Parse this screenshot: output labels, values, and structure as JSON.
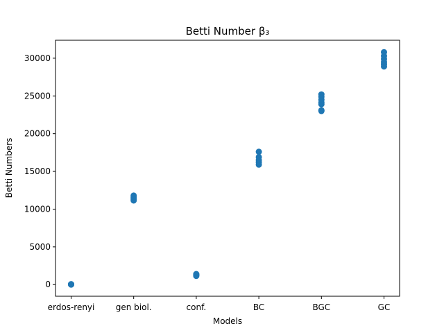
{
  "chart_data": {
    "type": "scatter",
    "title": "Betti Number β₃",
    "xlabel": "Models",
    "ylabel": "Betti Numbers",
    "categories": [
      "erdos-renyi",
      "gen biol.",
      "conf.",
      "BC",
      "BGC",
      "GC"
    ],
    "ylim": [
      -1540,
      32380
    ],
    "yticks": [
      0,
      5000,
      10000,
      15000,
      20000,
      25000,
      30000
    ],
    "ytick_labels": [
      "0",
      "5000",
      "10000",
      "15000",
      "20000",
      "25000",
      "30000"
    ],
    "grid": false,
    "marker_color": "#1f77b4",
    "points": [
      {
        "x": "erdos-renyi",
        "y": 0
      },
      {
        "x": "erdos-renyi",
        "y": 20
      },
      {
        "x": "erdos-renyi",
        "y": 40
      },
      {
        "x": "erdos-renyi",
        "y": 60
      },
      {
        "x": "gen biol.",
        "y": 11150
      },
      {
        "x": "gen biol.",
        "y": 11300
      },
      {
        "x": "gen biol.",
        "y": 11450
      },
      {
        "x": "gen biol.",
        "y": 11600
      },
      {
        "x": "gen biol.",
        "y": 11800
      },
      {
        "x": "conf.",
        "y": 1150
      },
      {
        "x": "conf.",
        "y": 1250
      },
      {
        "x": "conf.",
        "y": 1330
      },
      {
        "x": "conf.",
        "y": 1400
      },
      {
        "x": "BC",
        "y": 15900
      },
      {
        "x": "BC",
        "y": 16200
      },
      {
        "x": "BC",
        "y": 16500
      },
      {
        "x": "BC",
        "y": 16900
      },
      {
        "x": "BC",
        "y": 17600
      },
      {
        "x": "BGC",
        "y": 23000
      },
      {
        "x": "BGC",
        "y": 23100
      },
      {
        "x": "BGC",
        "y": 23900
      },
      {
        "x": "BGC",
        "y": 24100
      },
      {
        "x": "BGC",
        "y": 24500
      },
      {
        "x": "BGC",
        "y": 24900
      },
      {
        "x": "BGC",
        "y": 25200
      },
      {
        "x": "GC",
        "y": 28900
      },
      {
        "x": "GC",
        "y": 29200
      },
      {
        "x": "GC",
        "y": 29500
      },
      {
        "x": "GC",
        "y": 29900
      },
      {
        "x": "GC",
        "y": 30300
      },
      {
        "x": "GC",
        "y": 30800
      }
    ]
  }
}
